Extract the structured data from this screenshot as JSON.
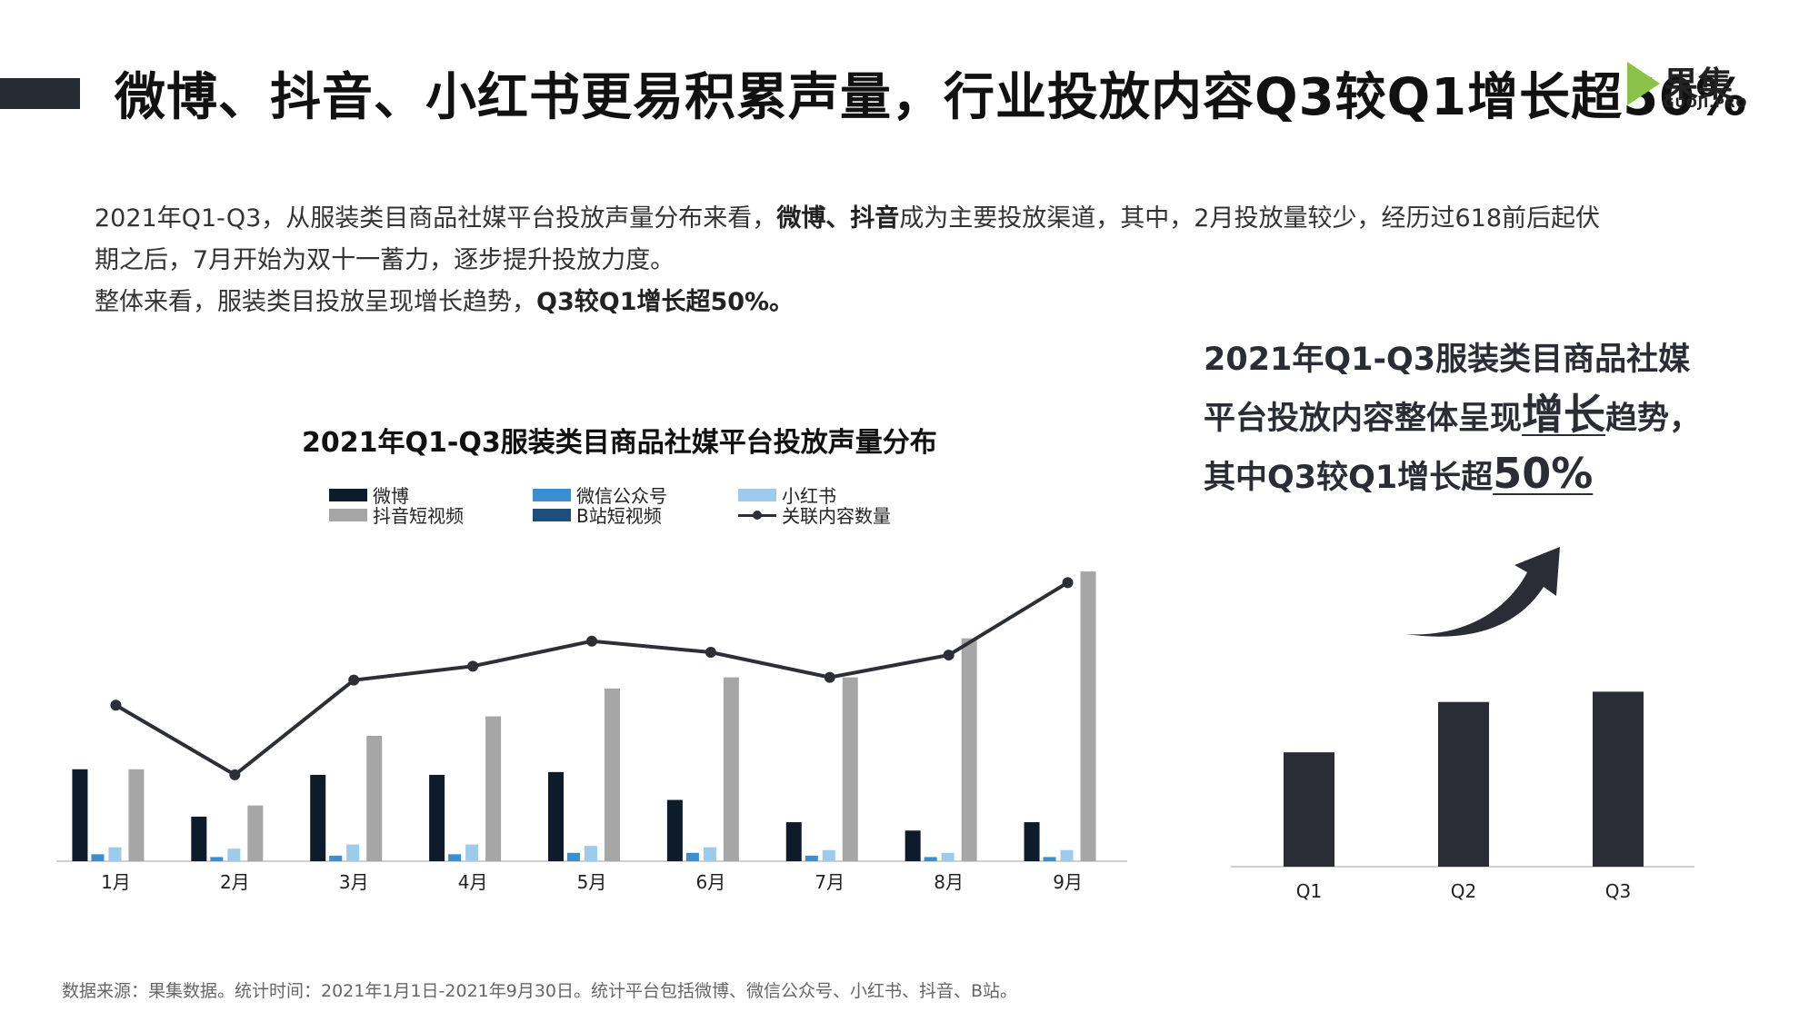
{
  "page": {
    "title": "微博、抖音、小红书更易积累声量，行业投放内容Q3较Q1增长超50%",
    "logo_name": "果集",
    "logo_sub": "GUOJI.PRO"
  },
  "intro": {
    "line1_a": "2021年Q1-Q3，从服装类目商品社媒平台投放声量分布来看，",
    "line1_bold": "微博、抖音",
    "line1_b": "成为主要投放渠道，其中，2月投放量较少，经历过618前后起伏",
    "line2": "期之后，7月开始为双十一蓄力，逐步提升投放力度。",
    "line3_a": "整体来看，服装类目投放呈现增长趋势，",
    "line3_bold": "Q3较Q1增长超50%。"
  },
  "right_headline": {
    "line1": "2021年Q1-Q3服装类目商品社媒",
    "line2_a": "平台投放内容整体呈现",
    "line2_big": "增长",
    "line2_b": "趋势，",
    "line3_a": "其中Q3较Q1增长超",
    "line3_big": "50%"
  },
  "source": "数据来源：果集数据。统计时间：2021年1月1日-2021年9月30日。统计平台包括微博、微信公众号、小红书、抖音、B站。",
  "colors": {
    "weibo": "#0d1b2a",
    "wechat": "#3a8fd0",
    "xiaohongshu": "#9ccbeb",
    "douyin": "#a6a6a6",
    "bilibili": "#1f4e79",
    "line": "#2c2f36",
    "quarter_bar": "#2a2d35"
  },
  "chart_data": [
    {
      "type": "bar",
      "title": "2021年Q1-Q3服装类目商品社媒平台投放声量分布",
      "categories": [
        "1月",
        "2月",
        "3月",
        "4月",
        "5月",
        "6月",
        "7月",
        "8月",
        "9月"
      ],
      "series": [
        {
          "name": "微博",
          "values": [
            33,
            16,
            31,
            31,
            32,
            22,
            14,
            11,
            14
          ]
        },
        {
          "name": "微信公众号",
          "values": [
            2.5,
            1.5,
            2,
            2.5,
            3,
            3,
            2,
            1.5,
            1.5
          ]
        },
        {
          "name": "小红书",
          "values": [
            5,
            4.5,
            6,
            6,
            5.5,
            5,
            4,
            3,
            4
          ]
        },
        {
          "name": "抖音短视频",
          "values": [
            33,
            20,
            45,
            52,
            62,
            66,
            66,
            80,
            104
          ]
        },
        {
          "name": "B站短视频",
          "values": [
            0,
            0,
            0,
            0,
            0,
            0,
            0,
            0,
            0
          ]
        },
        {
          "name": "关联内容数量",
          "type": "line",
          "values": [
            56,
            31,
            65,
            70,
            79,
            75,
            66,
            74,
            100
          ]
        }
      ],
      "ylim": [
        0,
        105
      ],
      "legend_position": "top",
      "grid": false
    },
    {
      "type": "bar",
      "categories": [
        "Q1",
        "Q2",
        "Q3"
      ],
      "values": [
        100,
        144,
        153
      ],
      "ylim": [
        0,
        170
      ],
      "grid": false
    }
  ]
}
